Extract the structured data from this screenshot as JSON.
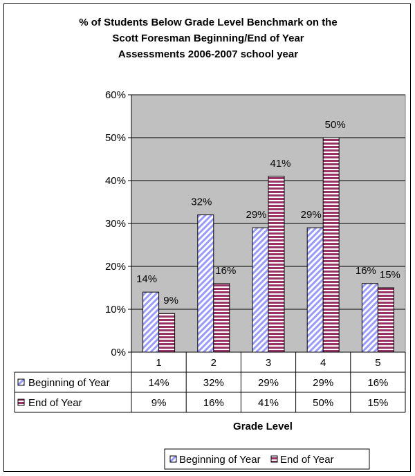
{
  "chart_data": {
    "type": "bar",
    "title_lines": [
      "% of Students Below Grade Level Benchmark on the",
      "Scott Foresman Beginning/End of Year",
      "Assessments 2006-2007 school year"
    ],
    "categories": [
      "1",
      "2",
      "3",
      "4",
      "5"
    ],
    "series": [
      {
        "name": "Beginning of Year",
        "values": [
          14,
          32,
          29,
          29,
          16
        ],
        "labels": [
          "14%",
          "32%",
          "29%",
          "29%",
          "16%"
        ]
      },
      {
        "name": "End of Year",
        "values": [
          9,
          16,
          41,
          50,
          15
        ],
        "labels": [
          "9%",
          "16%",
          "41%",
          "50%",
          "15%"
        ]
      }
    ],
    "ylim": [
      0,
      60
    ],
    "yticks": [
      "0%",
      "10%",
      "20%",
      "30%",
      "40%",
      "50%",
      "60%"
    ],
    "xlabel": "Grade Level",
    "ylabel": "",
    "grid": true,
    "legend_position": "bottom",
    "data_table": true,
    "colors": {
      "plot_background": "#c0c0c0",
      "beginning_stripe": "#9999ff",
      "end_stripe": "#993366"
    }
  }
}
